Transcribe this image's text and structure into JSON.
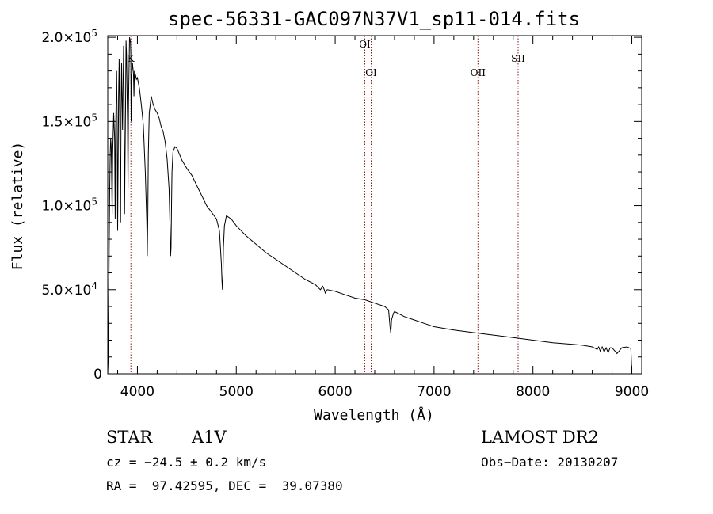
{
  "chart_data": {
    "type": "line",
    "title": "spec-56331-GAC097N37V1_sp11-014.fits",
    "xlabel": "Wavelength (Å)",
    "ylabel": "Flux (relative)",
    "xlim": [
      3700,
      9100
    ],
    "ylim": [
      0,
      201000
    ],
    "xticks": [
      {
        "value": 4000,
        "label": "4000"
      },
      {
        "value": 5000,
        "label": "5000"
      },
      {
        "value": 6000,
        "label": "6000"
      },
      {
        "value": 7000,
        "label": "7000"
      },
      {
        "value": 8000,
        "label": "8000"
      },
      {
        "value": 9000,
        "label": "9000"
      }
    ],
    "yticks": [
      {
        "value": 0,
        "mantissa": "0",
        "exponent": ""
      },
      {
        "value": 50000,
        "mantissa": "5.0×10",
        "exponent": "4"
      },
      {
        "value": 100000,
        "mantissa": "1.0×10",
        "exponent": "5"
      },
      {
        "value": 150000,
        "mantissa": "1.5×10",
        "exponent": "5"
      },
      {
        "value": 200000,
        "mantissa": "2.0×10",
        "exponent": "5"
      }
    ],
    "grid": false,
    "line_color": "#000000",
    "marker_color": "#8b1a1a",
    "series": [
      {
        "x": [
          3700,
          3705,
          3710,
          3715,
          3720,
          3725,
          3730,
          3735,
          3740,
          3745,
          3750,
          3760,
          3770,
          3775,
          3780,
          3790,
          3795,
          3800,
          3810,
          3815,
          3820,
          3830,
          3835,
          3840,
          3850,
          3860,
          3865,
          3870,
          3880,
          3885,
          3890,
          3900,
          3905,
          3910,
          3920,
          3930,
          3933,
          3936,
          3940,
          3950,
          3960,
          3965,
          3970,
          3975,
          3980,
          3990,
          4000,
          4020,
          4040,
          4060,
          4080,
          4095,
          4100,
          4105,
          4110,
          4120,
          4140,
          4160,
          4180,
          4200,
          4220,
          4240,
          4260,
          4280,
          4300,
          4320,
          4330,
          4335,
          4340,
          4345,
          4350,
          4360,
          4380,
          4400,
          4450,
          4500,
          4550,
          4600,
          4650,
          4700,
          4750,
          4800,
          4830,
          4850,
          4855,
          4860,
          4865,
          4870,
          4880,
          4900,
          4950,
          5000,
          5100,
          5200,
          5300,
          5400,
          5500,
          5600,
          5700,
          5800,
          5850,
          5875,
          5890,
          5900,
          5920,
          6000,
          6100,
          6200,
          6300,
          6400,
          6500,
          6540,
          6555,
          6563,
          6570,
          6590,
          6600,
          6700,
          6800,
          6900,
          7000,
          7200,
          7400,
          7600,
          7800,
          8000,
          8200,
          8400,
          8500,
          8600,
          8650,
          8665,
          8680,
          8700,
          8720,
          8740,
          8760,
          8780,
          8800,
          8850,
          8900,
          8950,
          8990,
          9000
        ],
        "y": [
          0,
          8000,
          40000,
          80000,
          110000,
          130000,
          140000,
          135000,
          115000,
          95000,
          130000,
          155000,
          140000,
          92000,
          145000,
          180000,
          150000,
          85000,
          165000,
          187000,
          160000,
          90000,
          155000,
          185000,
          145000,
          195000,
          170000,
          95000,
          160000,
          198000,
          190000,
          150000,
          110000,
          160000,
          200000,
          197000,
          190000,
          150000,
          175000,
          185000,
          178000,
          165000,
          180000,
          175000,
          178000,
          175000,
          176000,
          170000,
          160000,
          148000,
          120000,
          90000,
          70000,
          95000,
          130000,
          155000,
          165000,
          160000,
          157000,
          155000,
          152000,
          147000,
          144000,
          138000,
          128000,
          110000,
          88000,
          70000,
          75000,
          100000,
          120000,
          132000,
          135000,
          134000,
          127000,
          122000,
          118000,
          112000,
          106000,
          100000,
          96000,
          92000,
          85000,
          65000,
          55000,
          50000,
          58000,
          75000,
          88000,
          94000,
          92000,
          88000,
          82000,
          77000,
          72000,
          68000,
          64000,
          60000,
          56000,
          53000,
          50000,
          52000,
          50000,
          48000,
          50000,
          49000,
          47000,
          45000,
          44000,
          42000,
          40000,
          38000,
          28000,
          24000,
          32000,
          36000,
          37000,
          34000,
          32000,
          30000,
          28000,
          26000,
          24500,
          23000,
          21500,
          20000,
          18500,
          17500,
          17000,
          16000,
          14500,
          16000,
          13500,
          16000,
          13000,
          15500,
          12500,
          15500,
          15500,
          12000,
          15500,
          16000,
          15000,
          1000
        ]
      }
    ],
    "lines": [
      {
        "x": 3934,
        "label": "K",
        "label_row": 1
      },
      {
        "x": 6300,
        "label": "OI",
        "label_row": 0
      },
      {
        "x": 6364,
        "label": "OI",
        "label_row": 2
      },
      {
        "x": 7444,
        "label": "OII",
        "label_row": 2
      },
      {
        "x": 7850,
        "label": "SII",
        "label_row": 1
      }
    ]
  },
  "footer": {
    "object_type": "STAR",
    "subclass": "A1V",
    "survey": "LAMOST DR2",
    "velocity": "cz = −24.5 ± 0.2 km/s",
    "obs_date": "Obs−Date: 20130207",
    "coords": "RA =  97.42595, DEC =  39.07380"
  }
}
